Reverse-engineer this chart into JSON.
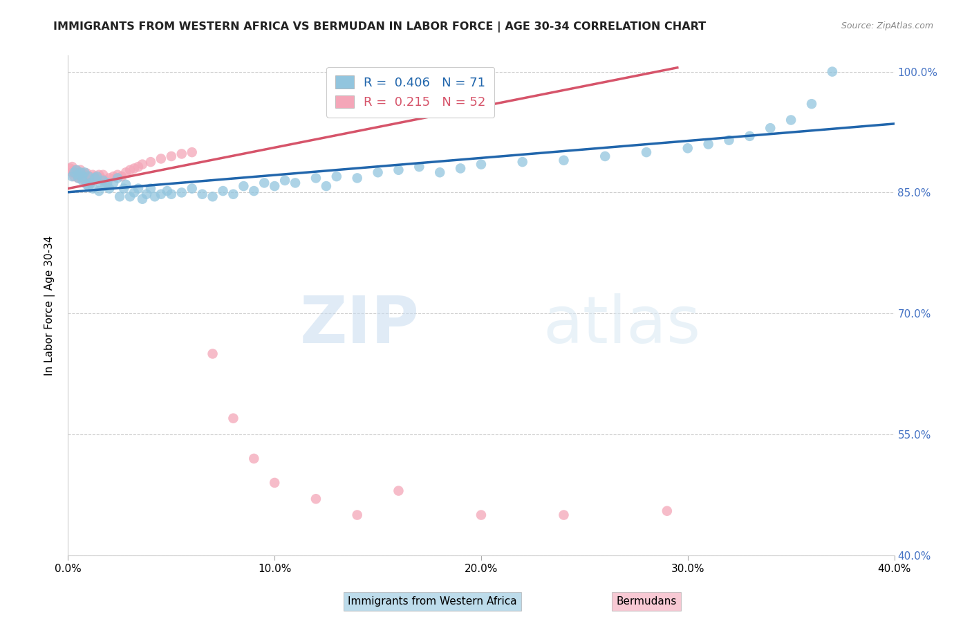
{
  "title": "IMMIGRANTS FROM WESTERN AFRICA VS BERMUDAN IN LABOR FORCE | AGE 30-34 CORRELATION CHART",
  "source": "Source: ZipAtlas.com",
  "ylabel": "In Labor Force | Age 30-34",
  "xlim": [
    0.0,
    0.4
  ],
  "ylim": [
    0.4,
    1.02
  ],
  "ytick_labels": [
    "40.0%",
    "55.0%",
    "70.0%",
    "85.0%",
    "100.0%"
  ],
  "ytick_values": [
    0.4,
    0.55,
    0.7,
    0.85,
    1.0
  ],
  "xtick_labels": [
    "0.0%",
    "10.0%",
    "20.0%",
    "30.0%",
    "40.0%"
  ],
  "xtick_values": [
    0.0,
    0.1,
    0.2,
    0.3,
    0.4
  ],
  "blue_color": "#92c5de",
  "pink_color": "#f4a6b8",
  "blue_line_color": "#2166ac",
  "pink_line_color": "#d6546a",
  "legend_blue_R": "0.406",
  "legend_blue_N": "71",
  "legend_pink_R": "0.215",
  "legend_pink_N": "52",
  "watermark_zip": "ZIP",
  "watermark_atlas": "atlas",
  "blue_x": [
    0.002,
    0.003,
    0.004,
    0.005,
    0.005,
    0.006,
    0.007,
    0.007,
    0.008,
    0.009,
    0.01,
    0.01,
    0.011,
    0.012,
    0.013,
    0.014,
    0.015,
    0.016,
    0.017,
    0.018,
    0.019,
    0.02,
    0.022,
    0.024,
    0.025,
    0.027,
    0.028,
    0.03,
    0.032,
    0.034,
    0.036,
    0.038,
    0.04,
    0.042,
    0.045,
    0.048,
    0.05,
    0.055,
    0.06,
    0.065,
    0.07,
    0.075,
    0.08,
    0.085,
    0.09,
    0.095,
    0.1,
    0.105,
    0.11,
    0.12,
    0.125,
    0.13,
    0.14,
    0.15,
    0.16,
    0.17,
    0.18,
    0.19,
    0.2,
    0.22,
    0.24,
    0.26,
    0.28,
    0.3,
    0.31,
    0.32,
    0.33,
    0.34,
    0.35,
    0.36,
    0.37
  ],
  "blue_y": [
    0.87,
    0.875,
    0.878,
    0.868,
    0.872,
    0.875,
    0.865,
    0.87,
    0.875,
    0.86,
    0.87,
    0.858,
    0.862,
    0.855,
    0.868,
    0.87,
    0.852,
    0.86,
    0.865,
    0.858,
    0.862,
    0.855,
    0.862,
    0.868,
    0.845,
    0.855,
    0.86,
    0.845,
    0.85,
    0.855,
    0.842,
    0.848,
    0.855,
    0.845,
    0.848,
    0.852,
    0.848,
    0.85,
    0.855,
    0.848,
    0.845,
    0.852,
    0.848,
    0.858,
    0.852,
    0.862,
    0.858,
    0.865,
    0.862,
    0.868,
    0.858,
    0.87,
    0.868,
    0.875,
    0.878,
    0.882,
    0.875,
    0.88,
    0.885,
    0.888,
    0.89,
    0.895,
    0.9,
    0.905,
    0.91,
    0.915,
    0.92,
    0.93,
    0.94,
    0.96,
    1.0
  ],
  "pink_x": [
    0.001,
    0.002,
    0.002,
    0.003,
    0.003,
    0.004,
    0.004,
    0.005,
    0.005,
    0.006,
    0.006,
    0.007,
    0.007,
    0.008,
    0.008,
    0.009,
    0.009,
    0.01,
    0.01,
    0.011,
    0.012,
    0.012,
    0.013,
    0.014,
    0.015,
    0.016,
    0.017,
    0.018,
    0.02,
    0.022,
    0.024,
    0.026,
    0.028,
    0.03,
    0.032,
    0.034,
    0.036,
    0.04,
    0.045,
    0.05,
    0.055,
    0.06,
    0.07,
    0.08,
    0.09,
    0.1,
    0.12,
    0.14,
    0.16,
    0.2,
    0.24,
    0.29
  ],
  "pink_y": [
    0.88,
    0.875,
    0.882,
    0.87,
    0.878,
    0.872,
    0.878,
    0.868,
    0.875,
    0.872,
    0.878,
    0.868,
    0.874,
    0.865,
    0.872,
    0.868,
    0.874,
    0.862,
    0.87,
    0.868,
    0.872,
    0.865,
    0.87,
    0.868,
    0.872,
    0.868,
    0.872,
    0.865,
    0.868,
    0.87,
    0.872,
    0.87,
    0.875,
    0.878,
    0.88,
    0.882,
    0.885,
    0.888,
    0.892,
    0.895,
    0.898,
    0.9,
    0.65,
    0.57,
    0.52,
    0.49,
    0.47,
    0.45,
    0.48,
    0.45,
    0.45,
    0.455
  ]
}
